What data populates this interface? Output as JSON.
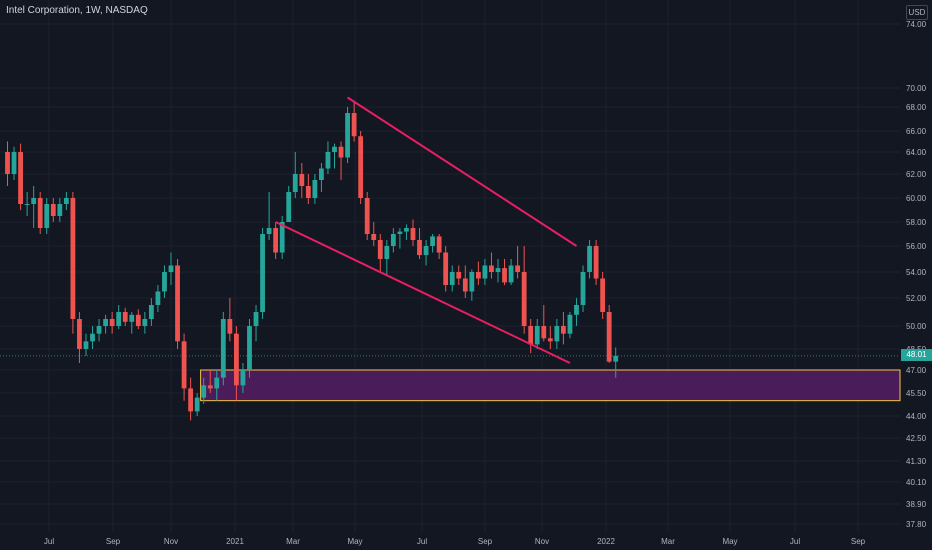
{
  "header": {
    "title": "Intel Corporation, 1W, NASDAQ",
    "currency": "USD"
  },
  "colors": {
    "background": "#131722",
    "up": "#26a69a",
    "down": "#ef5350",
    "trendline": "#e91e63",
    "zone_fill": "#4a1d5a",
    "zone_border": "#f5c542",
    "axis_text": "#b2b5be"
  },
  "chart_data": {
    "type": "candlestick",
    "y_ticks": [
      "74.00",
      "70.00",
      "68.00",
      "66.00",
      "64.00",
      "62.00",
      "60.00",
      "58.00",
      "56.00",
      "54.00",
      "52.00",
      "50.00",
      "48.50",
      "47.00",
      "45.50",
      "44.00",
      "42.50",
      "41.30",
      "40.10",
      "38.90",
      "37.80"
    ],
    "x_ticks": [
      "Jul",
      "Sep",
      "Nov",
      "2021",
      "Mar",
      "May",
      "Jul",
      "Sep",
      "Nov",
      "2022",
      "Mar",
      "May",
      "Jul",
      "Sep"
    ],
    "last_price": "48.01",
    "candles": [
      [
        64.0,
        65.0,
        61.0,
        62.0
      ],
      [
        62.0,
        64.5,
        61.5,
        64.0
      ],
      [
        64.0,
        64.8,
        59.0,
        59.5
      ],
      [
        59.5,
        60.5,
        58.5,
        59.5
      ],
      [
        59.5,
        61.0,
        57.5,
        60.0
      ],
      [
        60.0,
        60.5,
        57.0,
        57.5
      ],
      [
        57.5,
        60.0,
        57.0,
        59.5
      ],
      [
        59.5,
        60.0,
        58.0,
        58.5
      ],
      [
        58.5,
        60.0,
        58.0,
        59.5
      ],
      [
        59.5,
        60.5,
        59.0,
        60.0
      ],
      [
        60.0,
        60.5,
        49.5,
        50.5
      ],
      [
        50.5,
        51.0,
        47.5,
        48.5
      ],
      [
        48.5,
        49.5,
        48.0,
        49.0
      ],
      [
        49.0,
        50.0,
        48.5,
        49.5
      ],
      [
        49.5,
        50.5,
        49.0,
        50.0
      ],
      [
        50.0,
        50.8,
        49.5,
        50.5
      ],
      [
        50.5,
        51.0,
        49.5,
        50.0
      ],
      [
        50.0,
        51.5,
        49.8,
        51.0
      ],
      [
        51.0,
        51.3,
        50.0,
        50.3
      ],
      [
        50.3,
        51.0,
        49.5,
        50.8
      ],
      [
        50.8,
        51.2,
        49.8,
        50.0
      ],
      [
        50.0,
        51.0,
        49.5,
        50.5
      ],
      [
        50.5,
        52.0,
        50.0,
        51.5
      ],
      [
        51.5,
        53.0,
        51.0,
        52.5
      ],
      [
        52.5,
        54.5,
        52.0,
        54.0
      ],
      [
        54.0,
        55.5,
        53.0,
        54.5
      ],
      [
        54.5,
        55.0,
        48.5,
        49.0
      ],
      [
        49.0,
        49.5,
        45.0,
        45.8
      ],
      [
        45.8,
        46.5,
        43.7,
        44.3
      ],
      [
        44.3,
        45.5,
        44.0,
        45.2
      ],
      [
        45.2,
        46.5,
        44.8,
        46.0
      ],
      [
        46.0,
        47.0,
        45.5,
        45.8
      ],
      [
        45.8,
        47.0,
        45.0,
        46.5
      ],
      [
        46.5,
        51.0,
        46.0,
        50.5
      ],
      [
        50.5,
        52.0,
        49.0,
        49.5
      ],
      [
        49.5,
        50.0,
        45.0,
        46.0
      ],
      [
        46.0,
        47.5,
        45.5,
        47.0
      ],
      [
        47.0,
        50.5,
        46.5,
        50.0
      ],
      [
        50.0,
        51.5,
        49.0,
        51.0
      ],
      [
        51.0,
        57.5,
        50.5,
        57.0
      ],
      [
        57.0,
        60.5,
        56.5,
        57.5
      ],
      [
        57.5,
        58.0,
        55.0,
        55.5
      ],
      [
        55.5,
        58.5,
        55.0,
        58.0
      ],
      [
        58.0,
        61.0,
        58.0,
        60.5
      ],
      [
        60.5,
        64.0,
        60.0,
        62.0
      ],
      [
        62.0,
        63.0,
        60.0,
        61.0
      ],
      [
        61.0,
        62.0,
        59.5,
        60.0
      ],
      [
        60.0,
        62.0,
        59.5,
        61.5
      ],
      [
        61.5,
        63.0,
        60.5,
        62.5
      ],
      [
        62.5,
        65.0,
        62.0,
        64.0
      ],
      [
        64.0,
        64.8,
        62.5,
        64.5
      ],
      [
        64.5,
        65.0,
        61.5,
        63.5
      ],
      [
        63.5,
        68.0,
        63.0,
        67.5
      ],
      [
        67.5,
        68.5,
        65.0,
        65.5
      ],
      [
        65.5,
        66.0,
        59.5,
        60.0
      ],
      [
        60.0,
        60.5,
        56.5,
        57.0
      ],
      [
        57.0,
        58.0,
        56.0,
        56.5
      ],
      [
        56.5,
        57.0,
        54.0,
        55.0
      ],
      [
        55.0,
        56.5,
        53.8,
        56.0
      ],
      [
        56.0,
        57.5,
        55.5,
        57.0
      ],
      [
        57.0,
        57.5,
        55.8,
        57.2
      ],
      [
        57.2,
        57.8,
        56.5,
        57.5
      ],
      [
        57.5,
        58.2,
        56.0,
        56.5
      ],
      [
        56.5,
        57.5,
        55.0,
        55.3
      ],
      [
        55.3,
        56.5,
        54.5,
        56.0
      ],
      [
        56.0,
        57.0,
        55.5,
        56.8
      ],
      [
        56.8,
        57.0,
        55.0,
        55.5
      ],
      [
        55.5,
        56.0,
        52.5,
        53.0
      ],
      [
        53.0,
        54.5,
        52.5,
        54.0
      ],
      [
        54.0,
        54.5,
        53.0,
        53.5
      ],
      [
        53.5,
        54.5,
        52.0,
        52.5
      ],
      [
        52.5,
        54.2,
        51.8,
        54.0
      ],
      [
        54.0,
        54.8,
        53.0,
        53.5
      ],
      [
        53.5,
        55.0,
        53.0,
        54.5
      ],
      [
        54.5,
        55.5,
        53.5,
        54.0
      ],
      [
        54.0,
        55.0,
        53.2,
        54.3
      ],
      [
        54.3,
        55.0,
        53.0,
        53.2
      ],
      [
        53.2,
        55.0,
        53.0,
        54.5
      ],
      [
        54.5,
        56.0,
        53.5,
        54.0
      ],
      [
        54.0,
        56.0,
        49.5,
        50.0
      ],
      [
        50.0,
        50.5,
        48.2,
        48.8
      ],
      [
        48.8,
        50.5,
        48.5,
        50.0
      ],
      [
        50.0,
        51.5,
        49.0,
        49.2
      ],
      [
        49.2,
        50.0,
        48.5,
        49.0
      ],
      [
        49.0,
        50.5,
        48.5,
        50.0
      ],
      [
        50.0,
        51.0,
        48.8,
        49.5
      ],
      [
        49.5,
        51.0,
        49.2,
        50.8
      ],
      [
        50.8,
        52.0,
        50.0,
        51.5
      ],
      [
        51.5,
        54.5,
        51.0,
        54.0
      ],
      [
        54.0,
        56.5,
        53.5,
        56.0
      ],
      [
        56.0,
        56.5,
        53.0,
        53.5
      ],
      [
        53.5,
        54.0,
        50.5,
        51.0
      ],
      [
        51.0,
        51.5,
        47.5,
        47.6
      ],
      [
        47.6,
        48.6,
        46.5,
        48.01
      ]
    ]
  },
  "annotations": {
    "upper_trendline": [
      [
        52,
        69.0
      ],
      [
        87,
        56.0
      ]
    ],
    "lower_trendline": [
      [
        41,
        58.0
      ],
      [
        86,
        47.5
      ]
    ],
    "zone": {
      "start_index": 28,
      "top": 47.0,
      "bottom": 45.0
    }
  }
}
